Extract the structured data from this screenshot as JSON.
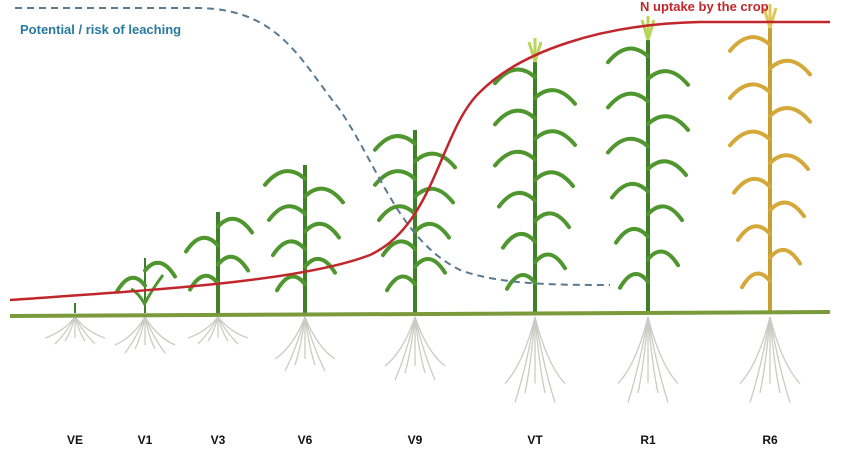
{
  "curves": [
    {
      "label": "Potential / risk of leaching"
    },
    {
      "label": "N uptake by the crop"
    }
  ],
  "stages": [
    "VE",
    "V1",
    "V3",
    "V6",
    "V9",
    "VT",
    "R1",
    "R6"
  ]
}
